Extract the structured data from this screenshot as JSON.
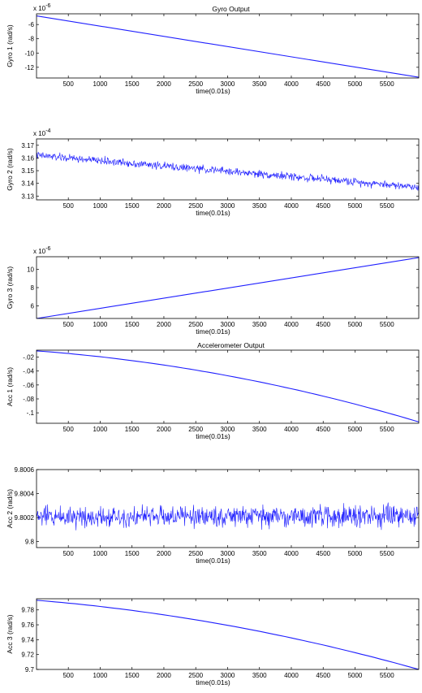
{
  "figure": {
    "background": "#ffffff",
    "line_color": "#1f1fff"
  },
  "chart_data": [
    {
      "type": "line",
      "title": "Gyro Output",
      "ylabel": "Gyro 1 (rad/s)",
      "xlabel": "time(0.01s)",
      "multiplier": "x 10",
      "multiplier_exp": "-6",
      "xlim": [
        1,
        6000
      ],
      "ylim": [
        -13.5,
        -4.5
      ],
      "xticks": [
        500,
        1000,
        1500,
        2000,
        2500,
        3000,
        3500,
        4000,
        4500,
        5000,
        5500
      ],
      "yticks": [
        -6,
        -8,
        -10,
        -12
      ],
      "series": [
        {
          "shape": "linear",
          "x": [
            1,
            6000
          ],
          "y": [
            -4.8,
            -13.4
          ],
          "noise": 0
        }
      ]
    },
    {
      "type": "line",
      "title": "",
      "ylabel": "Gyro 2 (rad/s)",
      "xlabel": "time(0.01s)",
      "multiplier": "x 10",
      "multiplier_exp": "-4",
      "xlim": [
        1,
        6000
      ],
      "ylim": [
        3.127,
        3.175
      ],
      "xticks": [
        500,
        1000,
        1500,
        2000,
        2500,
        3000,
        3500,
        4000,
        4500,
        5000,
        5500
      ],
      "yticks": [
        3.17,
        3.16,
        3.15,
        3.14,
        3.13
      ],
      "series": [
        {
          "shape": "linear",
          "x": [
            1,
            6000
          ],
          "y": [
            3.162,
            3.137
          ],
          "noise": 0.0045
        }
      ]
    },
    {
      "type": "line",
      "title": "",
      "ylabel": "Gyro 3 (rad/s)",
      "xlabel": "time(0.01s)",
      "multiplier": "x 10",
      "multiplier_exp": "-6",
      "xlim": [
        1,
        6000
      ],
      "ylim": [
        4.6,
        11.4
      ],
      "xticks": [
        500,
        1000,
        1500,
        2000,
        2500,
        3000,
        3500,
        4000,
        4500,
        5000,
        5500
      ],
      "yticks": [
        10,
        8,
        6
      ],
      "series": [
        {
          "shape": "linear",
          "x": [
            1,
            6000
          ],
          "y": [
            4.6,
            11.3
          ],
          "noise": 0
        }
      ]
    },
    {
      "type": "line",
      "title": "Accelerometer Output",
      "ylabel": "Acc 1 (rad/s)",
      "xlabel": "time(0.01s)",
      "multiplier": "",
      "multiplier_exp": "",
      "xlim": [
        1,
        6000
      ],
      "ylim": [
        -0.115,
        -0.01
      ],
      "xticks": [
        500,
        1000,
        1500,
        2000,
        2500,
        3000,
        3500,
        4000,
        4500,
        5000,
        5500
      ],
      "yticks": [
        -0.02,
        -0.04,
        -0.06,
        -0.08,
        -0.1
      ],
      "series": [
        {
          "shape": "quadratic",
          "x": [
            1,
            6000
          ],
          "y": [
            -0.011,
            -0.113
          ],
          "curve": 0.6,
          "noise": 0
        }
      ]
    },
    {
      "type": "line",
      "title": "",
      "ylabel": "Acc 2 (rad/s)",
      "xlabel": "time(0.01s)",
      "multiplier": "",
      "multiplier_exp": "",
      "xlim": [
        1,
        6000
      ],
      "ylim": [
        9.79995,
        9.8006
      ],
      "xticks": [
        500,
        1000,
        1500,
        2000,
        2500,
        3000,
        3500,
        4000,
        4500,
        5000,
        5500
      ],
      "yticks": [
        9.8006,
        9.8004,
        9.8002,
        9.8
      ],
      "series": [
        {
          "shape": "linear",
          "x": [
            1,
            6000
          ],
          "y": [
            9.80021,
            9.80021
          ],
          "noise": 0.00013
        }
      ]
    },
    {
      "type": "line",
      "title": "",
      "ylabel": "Acc 3 (rad/s)",
      "xlabel": "time(0.01s)",
      "multiplier": "",
      "multiplier_exp": "",
      "xlim": [
        1,
        6000
      ],
      "ylim": [
        9.7,
        9.795
      ],
      "xticks": [
        500,
        1000,
        1500,
        2000,
        2500,
        3000,
        3500,
        4000,
        4500,
        5000,
        5500
      ],
      "yticks": [
        9.78,
        9.76,
        9.74,
        9.72,
        9.7
      ],
      "series": [
        {
          "shape": "quadratic",
          "x": [
            1,
            6000
          ],
          "y": [
            9.793,
            9.7
          ],
          "curve": 0.55,
          "noise": 0
        }
      ]
    }
  ]
}
